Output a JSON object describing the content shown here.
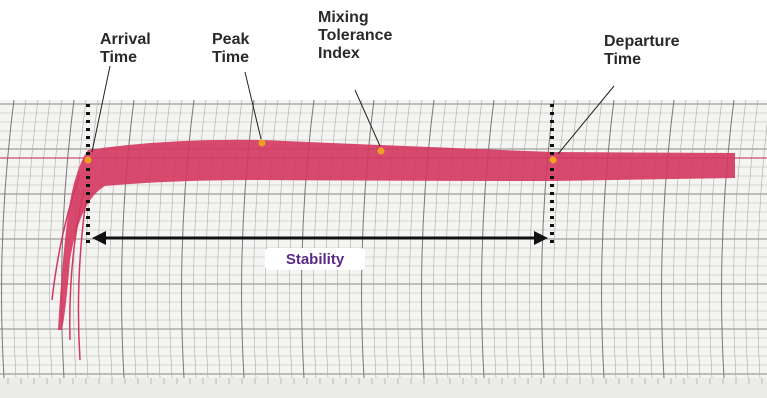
{
  "labels": [
    {
      "lines": [
        "Arrival",
        "Time"
      ]
    },
    {
      "lines": [
        "Peak",
        "Time"
      ]
    },
    {
      "lines": [
        "Mixing",
        "Tolerance",
        "Index"
      ]
    },
    {
      "lines": [
        "Departure",
        "Time"
      ]
    }
  ],
  "stability": "Stability"
}
